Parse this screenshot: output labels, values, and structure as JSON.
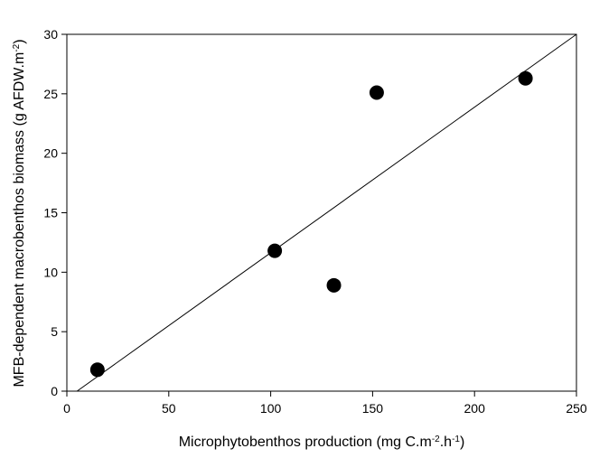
{
  "chart_data": {
    "type": "scatter",
    "xlabel": {
      "parts": [
        {
          "text": "Microphytobenthos production (mg C.m",
          "sup": false
        },
        {
          "text": "-2",
          "sup": true
        },
        {
          "text": ".h",
          "sup": false
        },
        {
          "text": "-1",
          "sup": true
        },
        {
          "text": ")",
          "sup": false
        }
      ]
    },
    "ylabel": {
      "parts": [
        {
          "text": "MFB-dependent macrobenthos biomass (g AFDW.m",
          "sup": false
        },
        {
          "text": "-2",
          "sup": true
        },
        {
          "text": ")",
          "sup": false
        }
      ]
    },
    "xlim": [
      0,
      250
    ],
    "ylim": [
      0,
      30
    ],
    "xticks": [
      0,
      50,
      100,
      150,
      200,
      250
    ],
    "yticks": [
      0,
      5,
      10,
      15,
      20,
      25,
      30
    ],
    "grid": false,
    "points": [
      {
        "x": 15,
        "y": 1.8
      },
      {
        "x": 102,
        "y": 11.8
      },
      {
        "x": 131,
        "y": 8.9
      },
      {
        "x": 152,
        "y": 25.1
      },
      {
        "x": 225,
        "y": 26.3
      }
    ],
    "regression_line": {
      "x": [
        5,
        250
      ],
      "y": [
        0,
        30
      ]
    },
    "marker_color": "#000000",
    "line_color": "#000000"
  }
}
